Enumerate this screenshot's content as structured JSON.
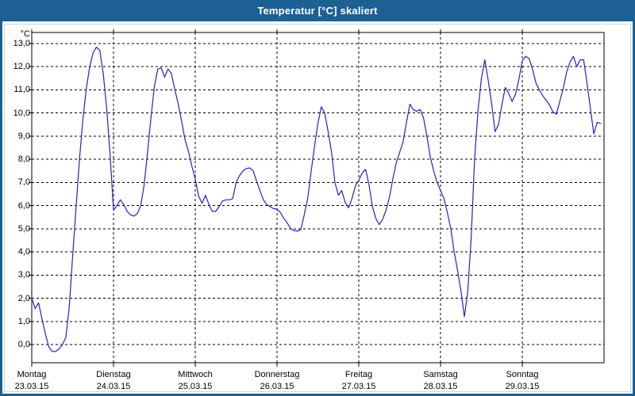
{
  "window": {
    "title": "Temperatur [°C] skaliert"
  },
  "colors": {
    "titlebar_bg": "#1c6094",
    "frame": "#1c6094",
    "plot_border": "#000000",
    "grid": "#000000",
    "line": "#2323c8",
    "label_text": "#000000",
    "panel_bg": "#ffffff"
  },
  "axes": {
    "y_unit_label": "°C",
    "y_tick_labels": [
      "13,0",
      "12,0",
      "11,0",
      "10,0",
      "9,0",
      "8,0",
      "7,0",
      "6,0",
      "5,0",
      "4,0",
      "3,0",
      "2,0",
      "1,0",
      "0,0"
    ],
    "days": [
      {
        "name": "Montag",
        "date": "23.03.15"
      },
      {
        "name": "Dienstag",
        "date": "24.03.15"
      },
      {
        "name": "Mittwoch",
        "date": "25.03.15"
      },
      {
        "name": "Donnerstag",
        "date": "26.03.15"
      },
      {
        "name": "Freitag",
        "date": "27.03.15"
      },
      {
        "name": "Samstag",
        "date": "28.03.15"
      },
      {
        "name": "Sonntag",
        "date": "29.03.15"
      }
    ]
  },
  "chart_data": {
    "type": "line",
    "title": "Temperatur [°C] skaliert",
    "ylabel": "°C",
    "y_gridline_values": [
      13,
      12,
      11,
      10,
      9,
      8,
      7,
      6,
      5,
      4,
      3,
      2,
      1,
      0
    ],
    "ylim_gridlines": [
      0,
      13
    ],
    "grid": "dashed",
    "legend": "none",
    "categories": [
      "Montag 23.03.15",
      "Dienstag 24.03.15",
      "Mittwoch 25.03.15",
      "Donnerstag 26.03.15",
      "Freitag 27.03.15",
      "Samstag 28.03.15",
      "Sonntag 29.03.15"
    ],
    "x_axis_note": "one sample per hour, 7 days, starting Montag 23.03.15 00:00",
    "series": [
      {
        "name": "Temperatur",
        "unit": "°C",
        "color": "#2323c8",
        "interval_hours": 1,
        "values": [
          2.0,
          1.55,
          1.8,
          1.1,
          0.45,
          -0.1,
          -0.3,
          -0.3,
          -0.2,
          0.0,
          0.3,
          1.6,
          3.8,
          5.9,
          8.0,
          9.7,
          11.05,
          12.0,
          12.6,
          12.85,
          12.7,
          11.7,
          10.2,
          8.2,
          5.8,
          6.0,
          6.25,
          6.05,
          5.75,
          5.6,
          5.55,
          5.65,
          6.0,
          6.9,
          8.3,
          9.8,
          11.15,
          11.9,
          11.95,
          11.55,
          11.9,
          11.7,
          11.0,
          10.4,
          9.65,
          8.85,
          8.35,
          7.7,
          7.15,
          6.4,
          6.1,
          6.45,
          6.05,
          5.75,
          5.75,
          5.95,
          6.2,
          6.25,
          6.25,
          6.3,
          7.0,
          7.3,
          7.5,
          7.6,
          7.63,
          7.5,
          7.05,
          6.65,
          6.25,
          6.05,
          5.95,
          5.87,
          5.85,
          5.7,
          5.45,
          5.25,
          5.0,
          4.92,
          4.9,
          4.97,
          5.6,
          6.3,
          7.45,
          8.55,
          9.55,
          10.27,
          10.0,
          9.2,
          8.3,
          7.0,
          6.45,
          6.65,
          6.15,
          5.9,
          6.3,
          6.85,
          7.1,
          7.4,
          7.57,
          6.9,
          5.95,
          5.45,
          5.18,
          5.4,
          5.8,
          6.35,
          7.15,
          7.85,
          8.3,
          8.75,
          9.6,
          10.38,
          10.15,
          10.08,
          10.15,
          9.8,
          9.0,
          8.1,
          7.5,
          7.0,
          6.65,
          6.3,
          5.7,
          5.0,
          4.0,
          3.2,
          2.3,
          1.2,
          2.3,
          4.6,
          8.0,
          10.1,
          11.5,
          12.3,
          11.4,
          10.4,
          9.2,
          9.5,
          10.35,
          11.1,
          10.85,
          10.5,
          10.8,
          11.45,
          12.25,
          12.45,
          12.35,
          11.9,
          11.3,
          11.0,
          10.75,
          10.55,
          10.35,
          10.05,
          9.95,
          10.5,
          11.05,
          11.75,
          12.2,
          12.45,
          12.0,
          12.3,
          12.3,
          11.3,
          10.2,
          9.1,
          9.6,
          9.55
        ]
      }
    ]
  }
}
